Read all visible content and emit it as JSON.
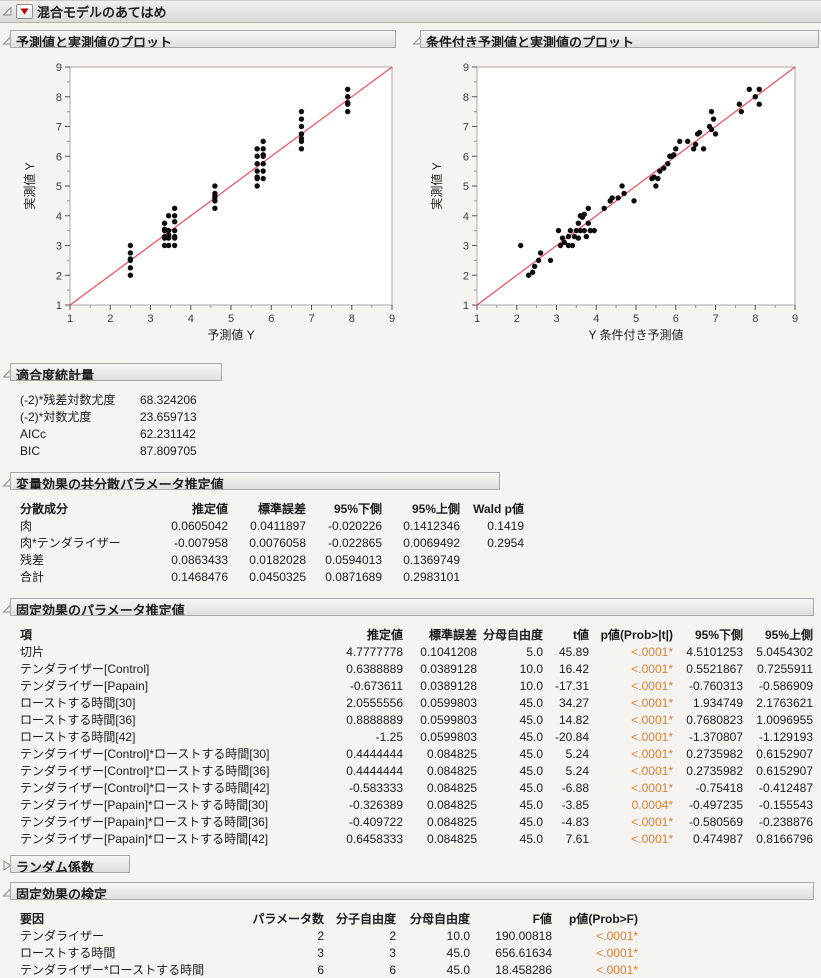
{
  "window": {
    "title": "混合モデルのあてはめ"
  },
  "colors": {
    "accent_orange": "#df7e33",
    "diagonal_red": "#f04e58",
    "point_black": "#0d0d0d"
  },
  "sections": {
    "plot_left": {
      "title": "予測値と実測値のプロット"
    },
    "plot_right": {
      "title": "条件付き予測値と実測値のプロット"
    },
    "fit_stats": {
      "title": "適合度統計量",
      "rows": [
        [
          "(-2)*残差対数尤度",
          "68.324206"
        ],
        [
          "(-2)*対数尤度",
          "23.659713"
        ],
        [
          "AICc",
          "62.231142"
        ],
        [
          "BIC",
          "87.809705"
        ]
      ]
    },
    "cov_params": {
      "title": "変量効果の共分散パラメータ推定値",
      "headers": [
        "分散成分",
        "推定値",
        "標準誤差",
        "95%下側",
        "95%上側",
        "Wald p値"
      ],
      "rows": [
        [
          "肉",
          "0.0605042",
          "0.0411897",
          "-0.020226",
          "0.1412346",
          "0.1419"
        ],
        [
          "肉*テンダライザー",
          "-0.007958",
          "0.0076058",
          "-0.022865",
          "0.0069492",
          "0.2954"
        ],
        [
          "残差",
          "0.0863433",
          "0.0182028",
          "0.0594013",
          "0.1369749",
          ""
        ],
        [
          "合計",
          "0.1468476",
          "0.0450325",
          "0.0871689",
          "0.2983101",
          ""
        ]
      ]
    },
    "fixed_effects": {
      "title": "固定効果のパラメータ推定値",
      "headers": [
        "項",
        "推定値",
        "標準誤差",
        "分母自由度",
        "t値",
        "p値(Prob>|t|)",
        "95%下側",
        "95%上側"
      ],
      "rows": [
        [
          "切片",
          "4.7777778",
          "0.1041208",
          "5.0",
          "45.89",
          "<.0001*",
          "4.5101253",
          "5.0454302"
        ],
        [
          "テンダライザー[Control]",
          "0.6388889",
          "0.0389128",
          "10.0",
          "16.42",
          "<.0001*",
          "0.5521867",
          "0.7255911"
        ],
        [
          "テンダライザー[Papain]",
          "-0.673611",
          "0.0389128",
          "10.0",
          "-17.31",
          "<.0001*",
          "-0.760313",
          "-0.586909"
        ],
        [
          "ローストする時間[30]",
          "2.0555556",
          "0.0599803",
          "45.0",
          "34.27",
          "<.0001*",
          "1.934749",
          "2.1763621"
        ],
        [
          "ローストする時間[36]",
          "0.8888889",
          "0.0599803",
          "45.0",
          "14.82",
          "<.0001*",
          "0.7680823",
          "1.0096955"
        ],
        [
          "ローストする時間[42]",
          "-1.25",
          "0.0599803",
          "45.0",
          "-20.84",
          "<.0001*",
          "-1.370807",
          "-1.129193"
        ],
        [
          "テンダライザー[Control]*ローストする時間[30]",
          "0.4444444",
          "0.084825",
          "45.0",
          "5.24",
          "<.0001*",
          "0.2735982",
          "0.6152907"
        ],
        [
          "テンダライザー[Control]*ローストする時間[36]",
          "0.4444444",
          "0.084825",
          "45.0",
          "5.24",
          "<.0001*",
          "0.2735982",
          "0.6152907"
        ],
        [
          "テンダライザー[Control]*ローストする時間[42]",
          "-0.583333",
          "0.084825",
          "45.0",
          "-6.88",
          "<.0001*",
          "-0.75418",
          "-0.412487"
        ],
        [
          "テンダライザー[Papain]*ローストする時間[30]",
          "-0.326389",
          "0.084825",
          "45.0",
          "-3.85",
          "0.0004*",
          "-0.497235",
          "-0.155543"
        ],
        [
          "テンダライザー[Papain]*ローストする時間[36]",
          "-0.409722",
          "0.084825",
          "45.0",
          "-4.83",
          "<.0001*",
          "-0.580569",
          "-0.238876"
        ],
        [
          "テンダライザー[Papain]*ローストする時間[42]",
          "0.6458333",
          "0.084825",
          "45.0",
          "7.61",
          "<.0001*",
          "0.474987",
          "0.8166796"
        ]
      ]
    },
    "random_coef": {
      "title": "ランダム係数"
    },
    "fixed_tests": {
      "title": "固定効果の検定",
      "headers": [
        "要因",
        "パラメータ数",
        "分子自由度",
        "分母自由度",
        "F値",
        "p値(Prob>F)"
      ],
      "rows": [
        [
          "テンダライザー",
          "2",
          "2",
          "10.0",
          "190.00818",
          "<.0001*"
        ],
        [
          "ローストする時間",
          "3",
          "3",
          "45.0",
          "656.61634",
          "<.0001*"
        ],
        [
          "テンダライザー*ローストする時間",
          "6",
          "6",
          "45.0",
          "18.458286",
          "<.0001*"
        ]
      ]
    }
  },
  "chart_data": [
    {
      "type": "scatter",
      "title": "予測値と実測値のプロット",
      "xlabel": "予測値 Y",
      "ylabel": "実測値 Y",
      "xlim": [
        1,
        9
      ],
      "ylim": [
        1,
        9
      ],
      "grid": false,
      "diagonal": true,
      "diagonal_color": "#f04e58",
      "points": [
        [
          2.5,
          2.0
        ],
        [
          2.5,
          2.25
        ],
        [
          2.5,
          2.5
        ],
        [
          2.5,
          2.55
        ],
        [
          2.5,
          2.75
        ],
        [
          2.5,
          3.0
        ],
        [
          3.35,
          3.0
        ],
        [
          3.35,
          3.25
        ],
        [
          3.35,
          3.3
        ],
        [
          3.35,
          3.5
        ],
        [
          3.35,
          3.55
        ],
        [
          3.35,
          3.75
        ],
        [
          3.45,
          3.0
        ],
        [
          3.45,
          3.25
        ],
        [
          3.45,
          3.3
        ],
        [
          3.45,
          3.35
        ],
        [
          3.45,
          3.5
        ],
        [
          3.45,
          4.0
        ],
        [
          3.6,
          3.0
        ],
        [
          3.6,
          3.25
        ],
        [
          3.6,
          3.3
        ],
        [
          3.6,
          3.5
        ],
        [
          3.6,
          3.8
        ],
        [
          3.6,
          4.0
        ],
        [
          3.6,
          4.25
        ],
        [
          4.6,
          4.25
        ],
        [
          4.6,
          4.5
        ],
        [
          4.6,
          4.6
        ],
        [
          4.6,
          4.65
        ],
        [
          4.6,
          4.75
        ],
        [
          4.6,
          5.0
        ],
        [
          5.65,
          5.0
        ],
        [
          5.65,
          5.25
        ],
        [
          5.65,
          5.3
        ],
        [
          5.65,
          5.5
        ],
        [
          5.65,
          5.75
        ],
        [
          5.65,
          6.0
        ],
        [
          5.65,
          6.25
        ],
        [
          5.8,
          5.25
        ],
        [
          5.8,
          5.5
        ],
        [
          5.8,
          5.75
        ],
        [
          5.8,
          6.0
        ],
        [
          5.8,
          6.05
        ],
        [
          5.8,
          6.25
        ],
        [
          5.8,
          6.5
        ],
        [
          6.75,
          6.25
        ],
        [
          6.75,
          6.5
        ],
        [
          6.75,
          6.6
        ],
        [
          6.75,
          6.75
        ],
        [
          6.75,
          7.0
        ],
        [
          6.75,
          7.25
        ],
        [
          6.75,
          7.5
        ],
        [
          7.9,
          7.5
        ],
        [
          7.9,
          7.75
        ],
        [
          7.9,
          7.8
        ],
        [
          7.9,
          8.0
        ],
        [
          7.9,
          8.25
        ]
      ]
    },
    {
      "type": "scatter",
      "title": "条件付き予測値と実測値のプロット",
      "xlabel": "Y 条件付き予測値",
      "ylabel": "実測値 Y",
      "xlim": [
        1,
        9
      ],
      "ylim": [
        1,
        9
      ],
      "grid": false,
      "diagonal": true,
      "diagonal_color": "#f04e58",
      "points": [
        [
          2.1,
          3.0
        ],
        [
          2.3,
          2.0
        ],
        [
          2.4,
          2.1
        ],
        [
          2.45,
          2.3
        ],
        [
          2.55,
          2.5
        ],
        [
          2.6,
          2.75
        ],
        [
          2.85,
          2.5
        ],
        [
          3.05,
          3.5
        ],
        [
          3.1,
          3.0
        ],
        [
          3.15,
          3.25
        ],
        [
          3.2,
          3.1
        ],
        [
          3.3,
          3.0
        ],
        [
          3.3,
          3.3
        ],
        [
          3.35,
          3.5
        ],
        [
          3.4,
          3.0
        ],
        [
          3.45,
          3.3
        ],
        [
          3.5,
          3.5
        ],
        [
          3.55,
          3.25
        ],
        [
          3.55,
          3.75
        ],
        [
          3.6,
          3.5
        ],
        [
          3.6,
          4.0
        ],
        [
          3.65,
          3.95
        ],
        [
          3.7,
          3.5
        ],
        [
          3.7,
          4.05
        ],
        [
          3.75,
          3.3
        ],
        [
          3.8,
          3.75
        ],
        [
          3.8,
          4.25
        ],
        [
          3.85,
          3.5
        ],
        [
          3.95,
          3.5
        ],
        [
          4.2,
          4.25
        ],
        [
          4.35,
          4.5
        ],
        [
          4.4,
          4.6
        ],
        [
          4.55,
          4.6
        ],
        [
          4.65,
          5.0
        ],
        [
          4.7,
          4.75
        ],
        [
          4.95,
          4.5
        ],
        [
          5.4,
          5.25
        ],
        [
          5.45,
          5.3
        ],
        [
          5.5,
          5.0
        ],
        [
          5.55,
          5.25
        ],
        [
          5.6,
          5.5
        ],
        [
          5.7,
          5.6
        ],
        [
          5.8,
          5.75
        ],
        [
          5.85,
          6.0
        ],
        [
          5.9,
          6.0
        ],
        [
          5.95,
          6.05
        ],
        [
          6.0,
          6.25
        ],
        [
          6.1,
          6.5
        ],
        [
          6.3,
          6.5
        ],
        [
          6.45,
          6.25
        ],
        [
          6.5,
          6.4
        ],
        [
          6.55,
          6.75
        ],
        [
          6.6,
          6.8
        ],
        [
          6.7,
          6.25
        ],
        [
          6.85,
          7.0
        ],
        [
          6.9,
          6.9
        ],
        [
          6.9,
          7.5
        ],
        [
          6.95,
          7.25
        ],
        [
          7.0,
          6.75
        ],
        [
          7.6,
          7.75
        ],
        [
          7.65,
          7.5
        ],
        [
          7.85,
          8.25
        ],
        [
          8.0,
          8.0
        ],
        [
          8.1,
          8.25
        ],
        [
          8.1,
          7.75
        ]
      ]
    }
  ]
}
